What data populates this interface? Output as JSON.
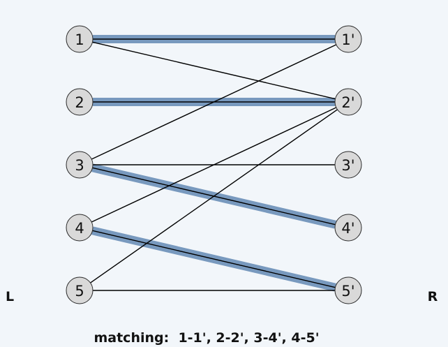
{
  "left_nodes": [
    "1",
    "2",
    "3",
    "4",
    "5"
  ],
  "right_nodes": [
    "1'",
    "2'",
    "3'",
    "4'",
    "5'"
  ],
  "edges": [
    {
      "from": "1",
      "to": "1'",
      "matched": true
    },
    {
      "from": "1",
      "to": "2'",
      "matched": false
    },
    {
      "from": "2",
      "to": "2'",
      "matched": true
    },
    {
      "from": "3",
      "to": "1'",
      "matched": false
    },
    {
      "from": "3",
      "to": "3'",
      "matched": false
    },
    {
      "from": "3",
      "to": "4'",
      "matched": true
    },
    {
      "from": "4",
      "to": "2'",
      "matched": false
    },
    {
      "from": "4",
      "to": "5'",
      "matched": true
    },
    {
      "from": "5",
      "to": "2'",
      "matched": false
    },
    {
      "from": "5",
      "to": "5'",
      "matched": false
    }
  ],
  "labels": {
    "left_side": "L",
    "right_side": "R"
  },
  "caption": "matching:  1-1', 2-2', 3-4', 4-5'",
  "colors": {
    "highlight": "#6b8fb8",
    "node_fill": "#d9d9d9",
    "background": "#f2f6fa"
  }
}
